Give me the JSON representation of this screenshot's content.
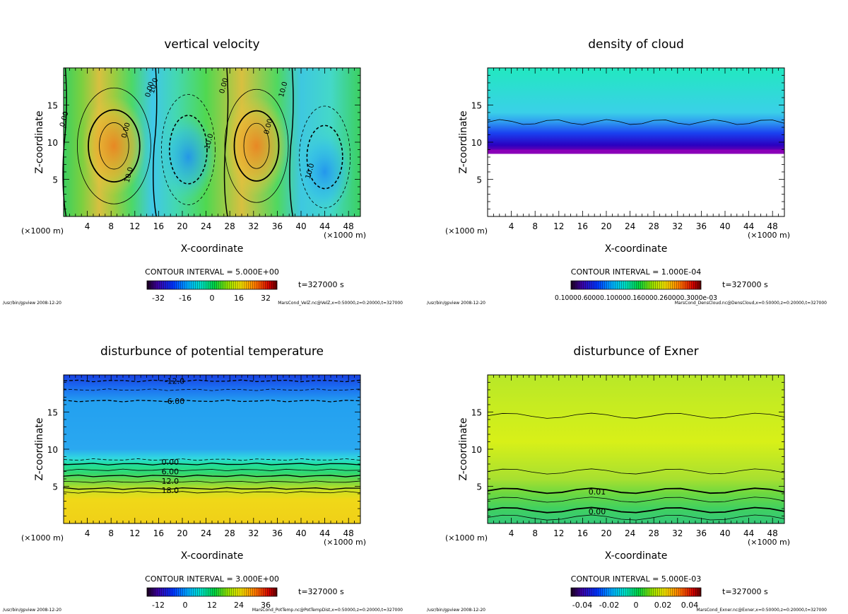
{
  "chart_data": [
    {
      "type": "heatmap",
      "title": "vertical velocity",
      "xlabel": "X-coordinate",
      "ylabel": "Z-coordinate",
      "x_unit_left": "(×1000 m)",
      "x_unit_right": "(×1000 m)",
      "xlim": [
        0,
        50
      ],
      "ylim": [
        0,
        20
      ],
      "xticks": [
        4,
        8,
        12,
        16,
        20,
        24,
        28,
        32,
        36,
        40,
        44,
        48
      ],
      "yticks": [
        5,
        10,
        15
      ],
      "contour_interval": "CONTOUR INTERVAL = 5.000E+00",
      "time": "t=327000 s",
      "colorbar_ticks": [
        "-32",
        "-16",
        "0",
        "16",
        "32"
      ],
      "contour_labels": [
        "0.00",
        "10.0",
        "0.00",
        "10.0",
        "0.00",
        "10.0",
        "0.00",
        "10.0",
        "10.0",
        "0.00"
      ],
      "footer_left": "/usr/bin/gpview  2008-12-20",
      "footer_right": "MarsCond_VelZ.nc@VelZ,x=0:50000,z=0:20000,t=327000"
    },
    {
      "type": "heatmap",
      "title": "density of cloud",
      "xlabel": "X-coordinate",
      "ylabel": "Z-coordinate",
      "x_unit_left": "(×1000 m)",
      "x_unit_right": "(×1000 m)",
      "xlim": [
        0,
        50
      ],
      "ylim": [
        0,
        20
      ],
      "xticks": [
        4,
        8,
        12,
        16,
        20,
        24,
        28,
        32,
        36,
        40,
        44,
        48
      ],
      "yticks": [
        5,
        10,
        15
      ],
      "contour_interval": "CONTOUR INTERVAL = 1.000E-04",
      "time": "t=327000 s",
      "colorbar_ticks_text": "0.10000.60000.100000.160000.260000.3000e-03",
      "footer_left": "/usr/bin/gpview  2008-12-20",
      "footer_right": "MarsCond_DensCloud.nc@DensCloud,x=0:50000,z=0:20000,t=327000"
    },
    {
      "type": "heatmap",
      "title": "disturbunce of potential temperature",
      "xlabel": "X-coordinate",
      "ylabel": "Z-coordinate",
      "x_unit_left": "(×1000 m)",
      "x_unit_right": "(×1000 m)",
      "xlim": [
        0,
        50
      ],
      "ylim": [
        0,
        20
      ],
      "xticks": [
        4,
        8,
        12,
        16,
        20,
        24,
        28,
        32,
        36,
        40,
        44,
        48
      ],
      "yticks": [
        5,
        10,
        15
      ],
      "contour_interval": "CONTOUR INTERVAL = 3.000E+00",
      "time": "t=327000 s",
      "colorbar_ticks": [
        "-12",
        "0",
        "12",
        "24",
        "36"
      ],
      "contour_labels": [
        "-12.0",
        "-6.00",
        "0.00",
        "6.00",
        "12.0",
        "18.0"
      ],
      "footer_left": "/usr/bin/gpview  2008-12-20",
      "footer_right": "MarsCond_PotTemp.nc@PotTempDist,x=0:50000,z=0:20000,t=327000"
    },
    {
      "type": "heatmap",
      "title": "disturbunce of Exner",
      "xlabel": "X-coordinate",
      "ylabel": "Z-coordinate",
      "x_unit_left": "(×1000 m)",
      "x_unit_right": "(×1000 m)",
      "xlim": [
        0,
        50
      ],
      "ylim": [
        0,
        20
      ],
      "xticks": [
        4,
        8,
        12,
        16,
        20,
        24,
        28,
        32,
        36,
        40,
        44,
        48
      ],
      "yticks": [
        5,
        10,
        15
      ],
      "contour_interval": "CONTOUR INTERVAL = 5.000E-03",
      "time": "t=327000 s",
      "colorbar_ticks": [
        "-0.04",
        "-0.02",
        "0",
        "0.02",
        "0.04"
      ],
      "contour_labels": [
        "0.01",
        "0.00"
      ],
      "footer_left": "/usr/bin/gpview  2008-12-20",
      "footer_right": "MarsCond_Exner.nc@Exner,x=0:50000,z=0:20000,t=327000"
    }
  ]
}
